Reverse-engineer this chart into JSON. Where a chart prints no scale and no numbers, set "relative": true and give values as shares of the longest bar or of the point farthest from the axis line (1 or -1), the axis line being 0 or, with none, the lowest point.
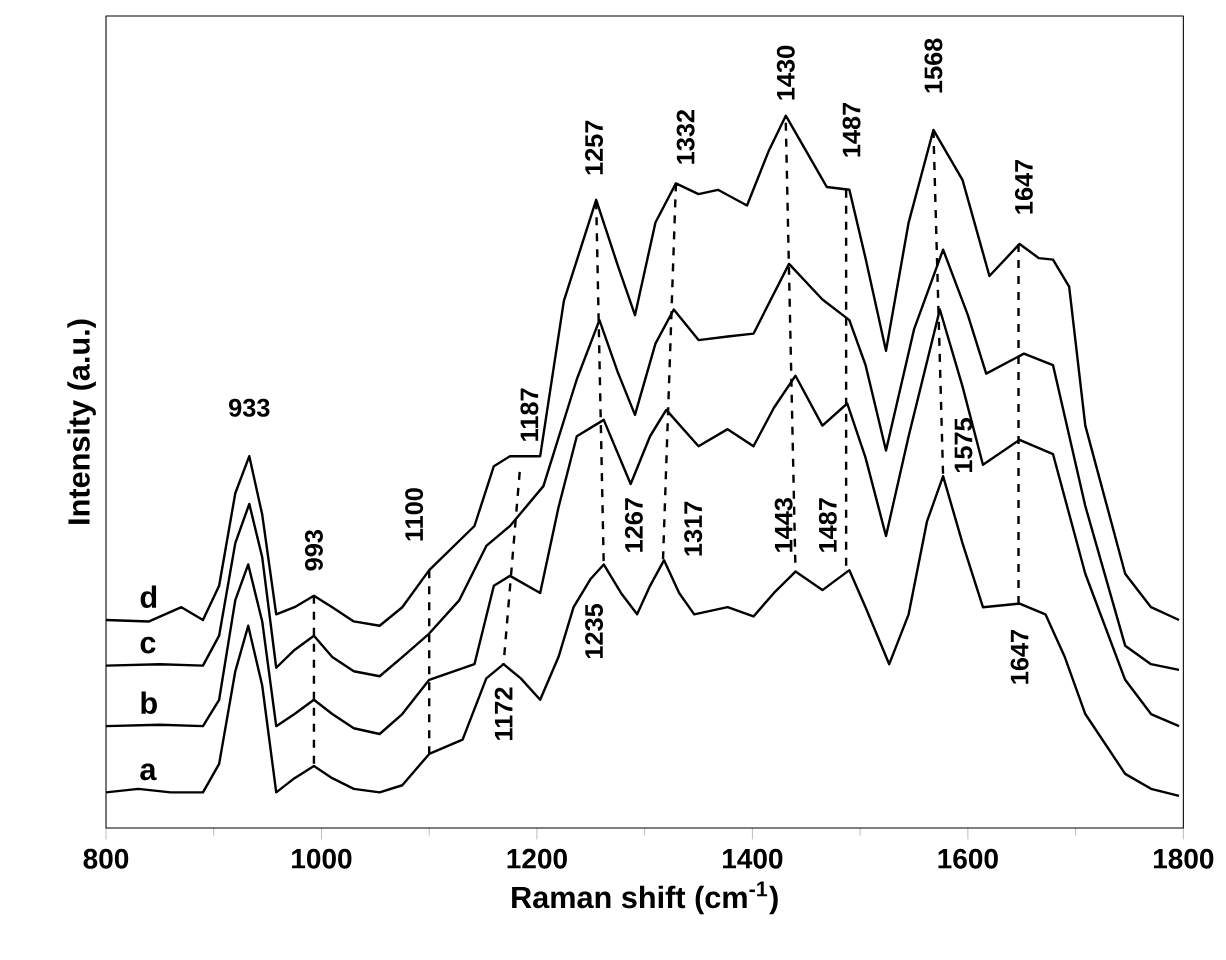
{
  "chart_data": {
    "type": "line",
    "relative": true,
    "xlabel": "Raman shift (cm$^{-1}$)",
    "ylabel": "Intensity (a.u.)",
    "xlim": [
      800,
      1800
    ],
    "xticks": [
      800,
      1000,
      1200,
      1400,
      1600,
      1800
    ],
    "series": [
      {
        "name": "a",
        "color": "#000000",
        "line_style": "solid",
        "x": [
          800,
          830,
          860,
          890,
          905,
          920,
          932,
          945,
          958,
          975,
          993,
          1010,
          1030,
          1054,
          1075,
          1100,
          1131,
          1153,
          1169,
          1185,
          1203,
          1220,
          1234,
          1250,
          1262,
          1278,
          1293,
          1305,
          1318,
          1332,
          1346,
          1377,
          1401,
          1420,
          1440,
          1465,
          1490,
          1505,
          1527,
          1545,
          1562,
          1577,
          1595,
          1614,
          1648,
          1672,
          1690,
          1709,
          1746,
          1770,
          1796
        ],
        "values": [
          0.05,
          0.055,
          0.05,
          0.05,
          0.09,
          0.22,
          0.284,
          0.2,
          0.05,
          0.07,
          0.087,
          0.07,
          0.055,
          0.05,
          0.06,
          0.104,
          0.124,
          0.21,
          0.23,
          0.21,
          0.18,
          0.24,
          0.31,
          0.35,
          0.37,
          0.33,
          0.3,
          0.34,
          0.376,
          0.33,
          0.3,
          0.31,
          0.297,
          0.33,
          0.36,
          0.334,
          0.362,
          0.31,
          0.23,
          0.3,
          0.43,
          0.494,
          0.4,
          0.31,
          0.315,
          0.3,
          0.24,
          0.16,
          0.076,
          0.055,
          0.045
        ]
      },
      {
        "name": "b",
        "color": "#000000",
        "line_style": "solid",
        "x": [
          800,
          850,
          890,
          905,
          920,
          932,
          945,
          958,
          975,
          993,
          1010,
          1030,
          1054,
          1075,
          1100,
          1142,
          1160,
          1175,
          1203,
          1220,
          1237,
          1262,
          1287,
          1305,
          1320,
          1350,
          1377,
          1401,
          1420,
          1440,
          1465,
          1488,
          1505,
          1524,
          1545,
          1574,
          1595,
          1614,
          1648,
          1679,
          1709,
          1746,
          1770,
          1796
        ],
        "values": [
          0.143,
          0.145,
          0.143,
          0.18,
          0.32,
          0.37,
          0.29,
          0.143,
          0.16,
          0.18,
          0.16,
          0.14,
          0.132,
          0.16,
          0.208,
          0.23,
          0.34,
          0.354,
          0.33,
          0.45,
          0.55,
          0.573,
          0.483,
          0.55,
          0.587,
          0.536,
          0.56,
          0.536,
          0.59,
          0.635,
          0.565,
          0.596,
          0.52,
          0.41,
          0.55,
          0.728,
          0.62,
          0.51,
          0.545,
          0.525,
          0.357,
          0.208,
          0.16,
          0.143
        ]
      },
      {
        "name": "c",
        "color": "#000000",
        "line_style": "solid",
        "x": [
          800,
          850,
          890,
          905,
          920,
          933,
          945,
          958,
          975,
          993,
          1010,
          1030,
          1054,
          1075,
          1100,
          1128,
          1153,
          1175,
          1206,
          1237,
          1258,
          1275,
          1291,
          1310,
          1327,
          1350,
          1377,
          1401,
          1434,
          1465,
          1490,
          1505,
          1524,
          1550,
          1577,
          1600,
          1617,
          1652,
          1679,
          1709,
          1746,
          1770,
          1796
        ],
        "values": [
          0.228,
          0.23,
          0.228,
          0.27,
          0.4,
          0.455,
          0.38,
          0.225,
          0.25,
          0.27,
          0.24,
          0.22,
          0.213,
          0.24,
          0.273,
          0.32,
          0.396,
          0.424,
          0.48,
          0.63,
          0.713,
          0.64,
          0.58,
          0.68,
          0.728,
          0.685,
          0.69,
          0.694,
          0.792,
          0.742,
          0.713,
          0.65,
          0.53,
          0.7,
          0.812,
          0.72,
          0.638,
          0.666,
          0.65,
          0.452,
          0.256,
          0.23,
          0.222
        ]
      },
      {
        "name": "d",
        "color": "#000000",
        "line_style": "solid",
        "x": [
          800,
          840,
          870,
          890,
          905,
          920,
          933,
          945,
          958,
          975,
          993,
          1010,
          1030,
          1054,
          1075,
          1100,
          1142,
          1160,
          1175,
          1203,
          1225,
          1255,
          1275,
          1291,
          1310,
          1329,
          1350,
          1368,
          1395,
          1415,
          1431,
          1450,
          1469,
          1490,
          1505,
          1524,
          1545,
          1568,
          1595,
          1620,
          1648,
          1666,
          1679,
          1694,
          1709,
          1746,
          1770,
          1796
        ],
        "values": [
          0.292,
          0.29,
          0.31,
          0.292,
          0.34,
          0.47,
          0.522,
          0.44,
          0.3,
          0.31,
          0.326,
          0.31,
          0.29,
          0.284,
          0.31,
          0.362,
          0.424,
          0.508,
          0.522,
          0.522,
          0.74,
          0.882,
          0.79,
          0.72,
          0.85,
          0.905,
          0.89,
          0.896,
          0.874,
          0.95,
          1,
          0.95,
          0.9,
          0.896,
          0.8,
          0.67,
          0.85,
          0.98,
          0.91,
          0.775,
          0.82,
          0.8,
          0.798,
          0.76,
          0.565,
          0.357,
          0.31,
          0.292
        ]
      },
      {
        "type": "line",
        "color": "#000000",
        "line_style": "dashed",
        "x": [
          993,
          993
        ],
        "values": [
          0.326,
          0.087
        ]
      },
      {
        "type": "line",
        "color": "#000000",
        "line_style": "dashed",
        "x": [
          1100,
          1100
        ],
        "values": [
          0.362,
          0.104
        ]
      },
      {
        "type": "line",
        "color": "#000000",
        "line_style": "dashed",
        "x": [
          1184,
          1169
        ],
        "values": [
          0.5,
          0.23
        ]
      },
      {
        "type": "line",
        "color": "#000000",
        "line_style": "dashed",
        "x": [
          1255,
          1262
        ],
        "values": [
          0.88,
          0.37
        ]
      },
      {
        "type": "line",
        "color": "#000000",
        "line_style": "dashed",
        "x": [
          1329,
          1317
        ],
        "values": [
          0.905,
          0.376
        ]
      },
      {
        "type": "line",
        "color": "#000000",
        "line_style": "dashed",
        "x": [
          1431,
          1440
        ],
        "values": [
          0.99,
          0.36
        ]
      },
      {
        "type": "line",
        "color": "#000000",
        "line_style": "dashed",
        "x": [
          1487,
          1487
        ],
        "values": [
          0.896,
          0.36
        ]
      },
      {
        "type": "line",
        "color": "#000000",
        "line_style": "dashed",
        "x": [
          1568,
          1577
        ],
        "values": [
          0.98,
          0.494
        ]
      },
      {
        "type": "line",
        "color": "#000000",
        "line_style": "dashed",
        "x": [
          1647,
          1647
        ],
        "values": [
          0.82,
          0.315
        ]
      }
    ],
    "annotations": [
      "933",
      "993",
      "1100",
      "1187",
      "1257",
      "1332",
      "1430",
      "1487",
      "1568",
      "1647",
      "1172",
      "1235",
      "1267",
      "1317",
      "1443",
      "1487",
      "1575",
      "1647"
    ]
  }
}
